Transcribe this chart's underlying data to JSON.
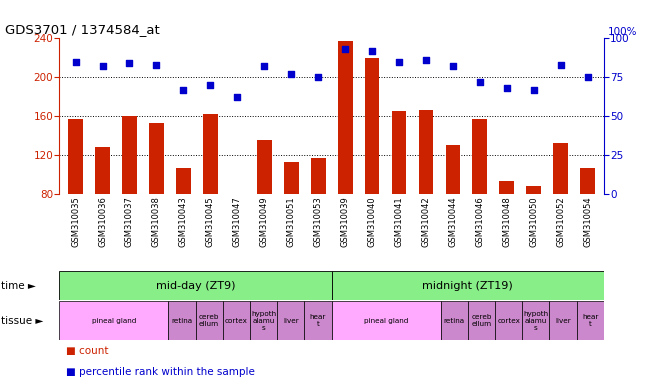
{
  "title": "GDS3701 / 1374584_at",
  "samples": [
    "GSM310035",
    "GSM310036",
    "GSM310037",
    "GSM310038",
    "GSM310043",
    "GSM310045",
    "GSM310047",
    "GSM310049",
    "GSM310051",
    "GSM310053",
    "GSM310039",
    "GSM310040",
    "GSM310041",
    "GSM310042",
    "GSM310044",
    "GSM310046",
    "GSM310048",
    "GSM310050",
    "GSM310052",
    "GSM310054"
  ],
  "counts": [
    157,
    128,
    160,
    153,
    107,
    162,
    80,
    135,
    113,
    117,
    237,
    220,
    165,
    166,
    130,
    157,
    93,
    88,
    132,
    107
  ],
  "percentile_ranks": [
    85,
    82,
    84,
    83,
    67,
    70,
    62,
    82,
    77,
    75,
    93,
    92,
    85,
    86,
    82,
    72,
    68,
    67,
    83,
    75
  ],
  "ylim_left": [
    80,
    240
  ],
  "ylim_right": [
    0,
    100
  ],
  "yticks_left": [
    80,
    120,
    160,
    200,
    240
  ],
  "yticks_right": [
    0,
    25,
    50,
    75,
    100
  ],
  "bar_color": "#cc2200",
  "dot_color": "#0000cc",
  "background_color": "#ffffff",
  "time_color": "#88ee88",
  "pineal_color": "#ffaaff",
  "tissue_other_color": "#cc88cc",
  "tissue_layout": [
    [
      "pineal gland",
      4
    ],
    [
      "retina",
      1
    ],
    [
      "cereb\nellum",
      1
    ],
    [
      "cortex",
      1
    ],
    [
      "hypoth\nalamu\ns",
      1
    ],
    [
      "liver",
      1
    ],
    [
      "hear\nt",
      1
    ]
  ]
}
